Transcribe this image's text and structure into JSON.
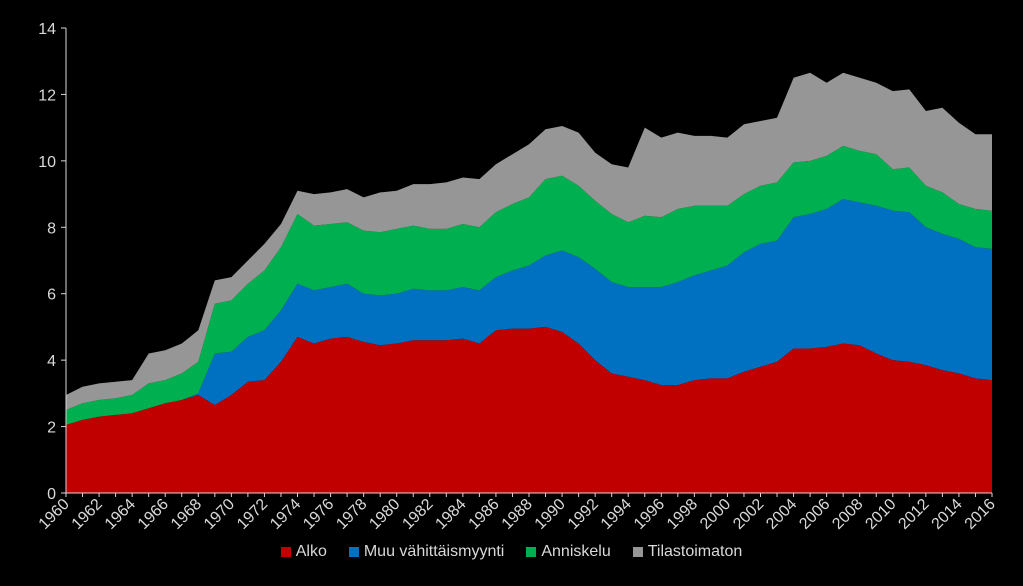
{
  "chart_data": {
    "type": "area",
    "stacked": true,
    "x": [
      1960,
      1961,
      1962,
      1963,
      1964,
      1965,
      1966,
      1967,
      1968,
      1969,
      1970,
      1971,
      1972,
      1973,
      1974,
      1975,
      1976,
      1977,
      1978,
      1979,
      1980,
      1981,
      1982,
      1983,
      1984,
      1985,
      1986,
      1987,
      1988,
      1989,
      1990,
      1991,
      1992,
      1993,
      1994,
      1995,
      1996,
      1997,
      1998,
      1999,
      2000,
      2001,
      2002,
      2003,
      2004,
      2005,
      2006,
      2007,
      2008,
      2009,
      2010,
      2011,
      2012,
      2013,
      2014,
      2015,
      2016
    ],
    "x_tick_labels": [
      "1960",
      "1962",
      "1964",
      "1966",
      "1968",
      "1970",
      "1972",
      "1974",
      "1976",
      "1978",
      "1980",
      "1982",
      "1984",
      "1986",
      "1988",
      "1990",
      "1992",
      "1994",
      "1996",
      "1998",
      "2000",
      "2002",
      "2004",
      "2006",
      "2008",
      "2010",
      "2012",
      "2014",
      "2016"
    ],
    "ylim": [
      0,
      14
    ],
    "y_ticks": [
      "0",
      "2",
      "4",
      "6",
      "8",
      "10",
      "12",
      "14"
    ],
    "grid": "none",
    "legend_position": "bottom",
    "series": [
      {
        "name": "Alko",
        "color": "#c00000",
        "values": [
          2.05,
          2.2,
          2.3,
          2.35,
          2.4,
          2.55,
          2.7,
          2.8,
          2.95,
          2.65,
          2.95,
          3.35,
          3.4,
          3.95,
          4.7,
          4.5,
          4.65,
          4.7,
          4.55,
          4.45,
          4.5,
          4.6,
          4.6,
          4.6,
          4.65,
          4.5,
          4.9,
          4.95,
          4.95,
          5.0,
          4.85,
          4.5,
          4.0,
          3.6,
          3.5,
          3.4,
          3.25,
          3.25,
          3.4,
          3.45,
          3.45,
          3.65,
          3.8,
          3.95,
          4.35,
          4.35,
          4.4,
          4.5,
          4.45,
          4.2,
          4.0,
          3.95,
          3.85,
          3.7,
          3.6,
          3.45,
          3.4
        ]
      },
      {
        "name": "Muu vähittäismyynti",
        "color": "#0070c0",
        "values": [
          0.0,
          0.0,
          0.0,
          0.0,
          0.0,
          0.0,
          0.0,
          0.0,
          0.05,
          1.55,
          1.3,
          1.35,
          1.5,
          1.55,
          1.6,
          1.6,
          1.55,
          1.6,
          1.45,
          1.5,
          1.5,
          1.55,
          1.5,
          1.5,
          1.55,
          1.6,
          1.6,
          1.75,
          1.9,
          2.15,
          2.45,
          2.6,
          2.75,
          2.75,
          2.7,
          2.8,
          2.95,
          3.1,
          3.15,
          3.25,
          3.4,
          3.6,
          3.7,
          3.65,
          3.95,
          4.05,
          4.15,
          4.35,
          4.3,
          4.45,
          4.5,
          4.5,
          4.15,
          4.1,
          4.05,
          3.95,
          3.95
        ]
      },
      {
        "name": "Anniskelu",
        "color": "#00b050",
        "values": [
          0.45,
          0.5,
          0.5,
          0.5,
          0.55,
          0.75,
          0.7,
          0.8,
          0.95,
          1.5,
          1.55,
          1.6,
          1.8,
          1.9,
          2.1,
          1.95,
          1.9,
          1.85,
          1.9,
          1.9,
          1.95,
          1.9,
          1.85,
          1.85,
          1.9,
          1.9,
          1.95,
          2.0,
          2.05,
          2.3,
          2.25,
          2.15,
          2.05,
          2.05,
          1.95,
          2.15,
          2.1,
          2.2,
          2.1,
          1.95,
          1.8,
          1.75,
          1.75,
          1.75,
          1.65,
          1.6,
          1.6,
          1.6,
          1.55,
          1.55,
          1.25,
          1.35,
          1.25,
          1.25,
          1.05,
          1.15,
          1.15
        ]
      },
      {
        "name": "Tilastoimaton",
        "color": "#969696",
        "values": [
          0.45,
          0.5,
          0.5,
          0.5,
          0.45,
          0.9,
          0.9,
          0.9,
          0.95,
          0.7,
          0.7,
          0.7,
          0.8,
          0.7,
          0.7,
          0.95,
          0.95,
          1.0,
          1.0,
          1.2,
          1.15,
          1.25,
          1.35,
          1.4,
          1.4,
          1.45,
          1.45,
          1.5,
          1.6,
          1.5,
          1.5,
          1.6,
          1.45,
          1.5,
          1.65,
          2.65,
          2.4,
          2.3,
          2.1,
          2.1,
          2.05,
          2.1,
          1.95,
          1.95,
          2.55,
          2.65,
          2.2,
          2.2,
          2.2,
          2.15,
          2.35,
          2.35,
          2.25,
          2.55,
          2.45,
          2.25,
          2.3
        ]
      }
    ]
  }
}
